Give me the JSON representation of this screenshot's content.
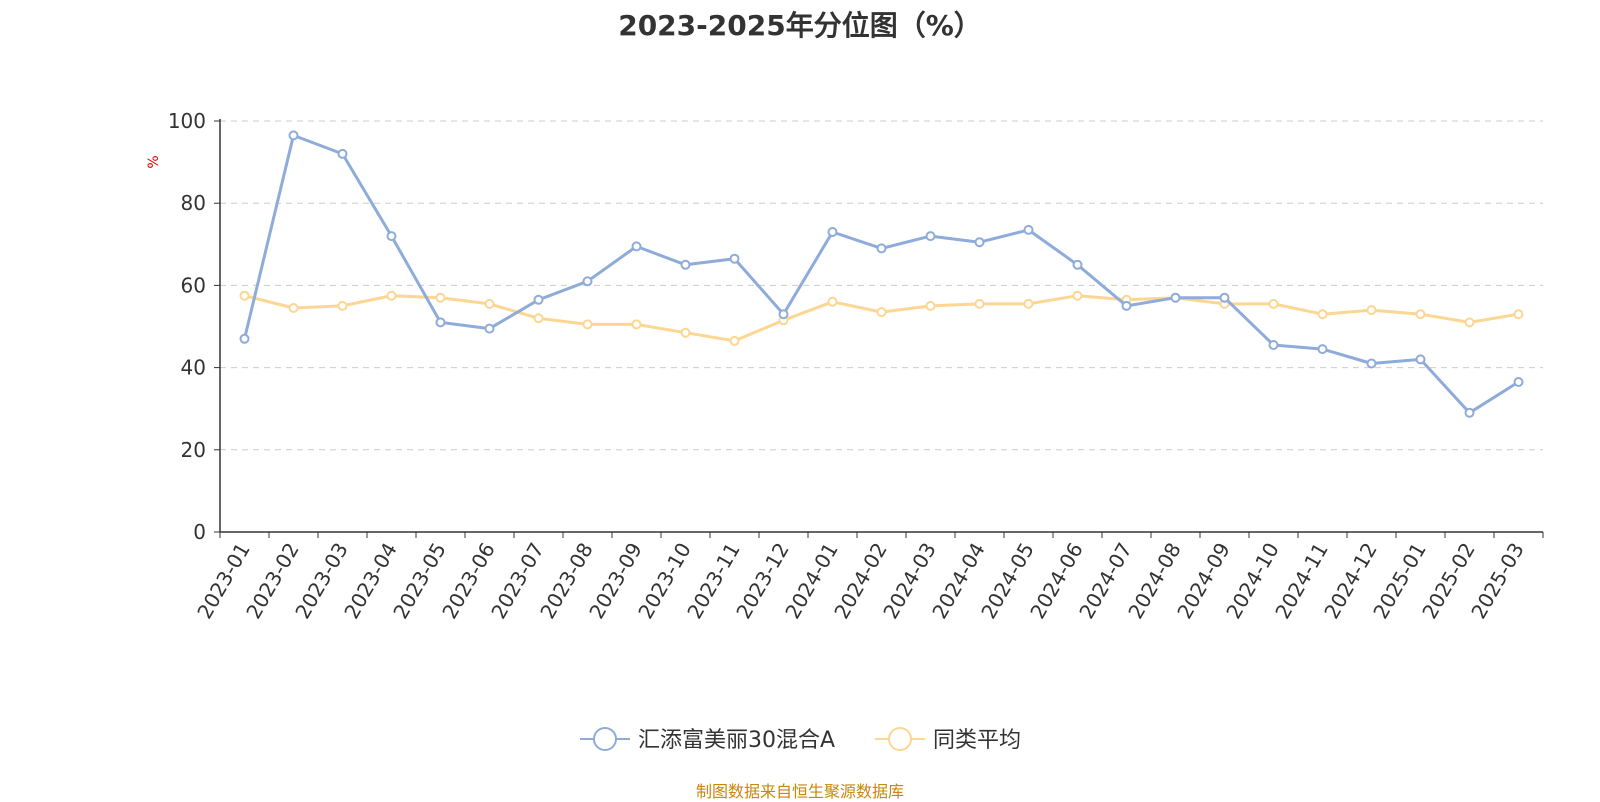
{
  "chart_data": {
    "type": "line",
    "title": "2023-2025年分位图（%）",
    "ylabel": "%",
    "ylim": [
      0,
      100
    ],
    "yticks": [
      "0",
      "20",
      "40",
      "60",
      "80",
      "100"
    ],
    "grid": true,
    "legend_position": "bottom",
    "categories": [
      "2023-01",
      "2023-02",
      "2023-03",
      "2023-04",
      "2023-05",
      "2023-06",
      "2023-07",
      "2023-08",
      "2023-09",
      "2023-10",
      "2023-11",
      "2023-12",
      "2024-01",
      "2024-02",
      "2024-03",
      "2024-04",
      "2024-05",
      "2024-06",
      "2024-07",
      "2024-08",
      "2024-09",
      "2024-10",
      "2024-11",
      "2024-12",
      "2025-01",
      "2025-02",
      "2025-03"
    ],
    "series": [
      {
        "name": "汇添富美丽30混合A",
        "color": "#8eabd9",
        "values": [
          47,
          96.5,
          92,
          72,
          51,
          49.5,
          56.5,
          61,
          69.5,
          65,
          66.5,
          53,
          73,
          69,
          72,
          70.5,
          73.5,
          65,
          55,
          57,
          57,
          45.5,
          44.5,
          41,
          42,
          29,
          36.5
        ]
      },
      {
        "name": "同类平均",
        "color": "#fcd692",
        "values": [
          57.5,
          54.5,
          55,
          57.5,
          57,
          55.5,
          52,
          50.5,
          50.5,
          48.5,
          46.5,
          51.5,
          56,
          53.5,
          55,
          55.5,
          55.5,
          57.5,
          56.5,
          57,
          55.5,
          55.5,
          53,
          54,
          53,
          51,
          53
        ]
      }
    ]
  },
  "footer": "制图数据来自恒生聚源数据库",
  "colors": {
    "title": "#333333",
    "axis": "#333333",
    "grid": "#cccccc",
    "ylabel": "#e00000",
    "footer": "#c8860a"
  }
}
